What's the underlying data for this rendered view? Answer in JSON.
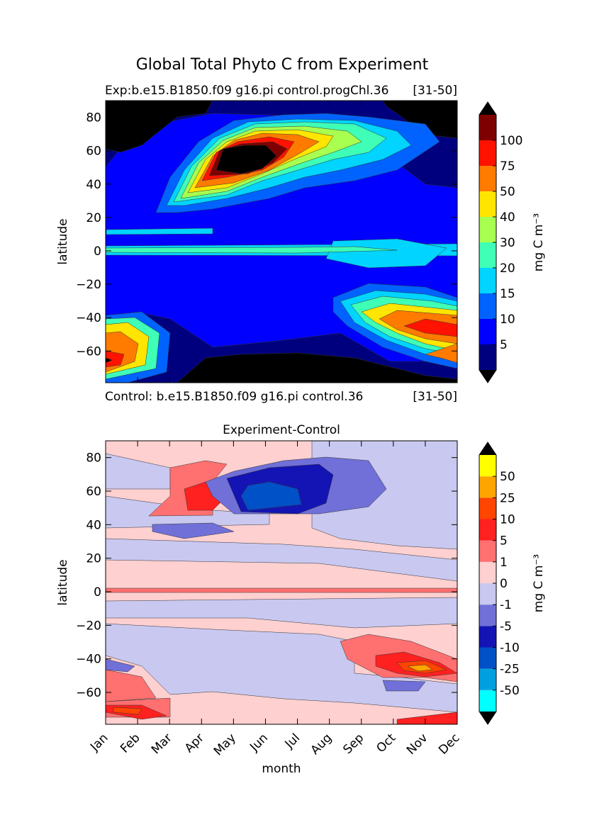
{
  "title": "Global Total Phyto C from Experiment",
  "chart_data": [
    {
      "type": "contour",
      "title_left": "Exp:b.e15.B1850.f09 g16.pi control.progChl.36",
      "title_right": "[31-50]",
      "caption_left": "Control: b.e15.B1850.f09 g16.pi control.36",
      "caption_right": "[31-50]",
      "ylabel": "latitude",
      "xlim": [
        1,
        12
      ],
      "xticks": [
        1,
        2,
        3,
        4,
        5,
        6,
        7,
        8,
        9,
        10,
        11,
        12
      ],
      "ylim": [
        -79,
        90
      ],
      "yticks": [
        {
          "value": -60,
          "label": "−60"
        },
        {
          "value": -40,
          "label": "−40"
        },
        {
          "value": -20,
          "label": "−20"
        },
        0,
        20,
        40,
        60,
        80
      ],
      "colorbar_label": "mg C m⁻³",
      "levels": [
        5,
        10,
        15,
        20,
        30,
        40,
        50,
        75,
        100
      ],
      "colors": [
        "#00007f",
        "#0000ff",
        "#0063ff",
        "#00d4ff",
        "#3fffb7",
        "#a8ff4f",
        "#ffe500",
        "#ff7b00",
        "#ff1300",
        "#7f0000"
      ],
      "extend_color": "#000000"
    },
    {
      "type": "contour",
      "title": "Experiment-Control",
      "xlabel": "month",
      "ylabel": "latitude",
      "xlim": [
        1,
        12
      ],
      "xticks": [
        {
          "value": 1,
          "label": "Jan"
        },
        {
          "value": 2,
          "label": "Feb"
        },
        {
          "value": 3,
          "label": "Mar"
        },
        {
          "value": 4,
          "label": "Apr"
        },
        {
          "value": 5,
          "label": "May"
        },
        {
          "value": 6,
          "label": "Jun"
        },
        {
          "value": 7,
          "label": "Jul"
        },
        {
          "value": 8,
          "label": "Aug"
        },
        {
          "value": 9,
          "label": "Sep"
        },
        {
          "value": 10,
          "label": "Oct"
        },
        {
          "value": 11,
          "label": "Nov"
        },
        {
          "value": 12,
          "label": "Dec"
        }
      ],
      "ylim": [
        -79,
        90
      ],
      "yticks": [
        {
          "value": -60,
          "label": "−60"
        },
        {
          "value": -40,
          "label": "−40"
        },
        {
          "value": -20,
          "label": "−20"
        },
        0,
        20,
        40,
        60,
        80
      ],
      "colorbar_label": "mg C m⁻³",
      "levels": [
        -50,
        -25,
        -10,
        -5,
        -1,
        0,
        1,
        5,
        10,
        25,
        50
      ],
      "colors": [
        "#00ffff",
        "#00a0e0",
        "#0050c8",
        "#1414b4",
        "#7070d8",
        "#c8c8f0",
        "#ffd0d0",
        "#ff7070",
        "#ff2020",
        "#ff4500",
        "#ffa500",
        "#ffff00"
      ],
      "extend_color": "#000000"
    }
  ]
}
